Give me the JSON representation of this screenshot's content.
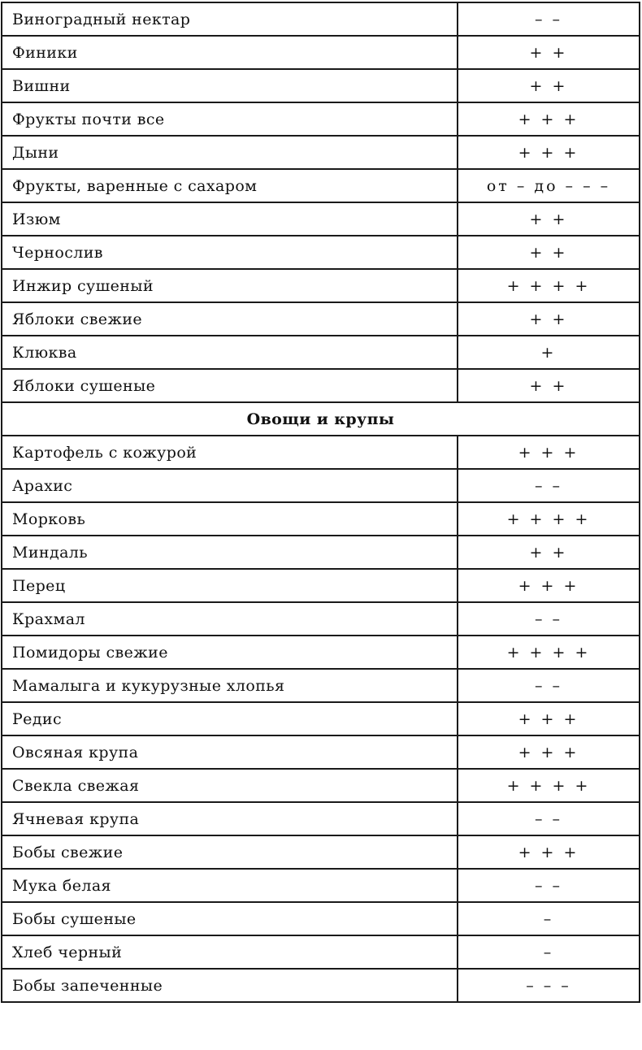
{
  "rows": [
    {
      "name": "Виноградный нектар",
      "value": "– –"
    },
    {
      "name": "Финики",
      "value": "+ +"
    },
    {
      "name": "Вишни",
      "value": "+ +"
    },
    {
      "name": "Фрукты почти все",
      "value": "+ + +"
    },
    {
      "name": "Дыни",
      "value": "+ + +"
    },
    {
      "name": "Фрукты, варенные с сахаром",
      "value": "от – до – – –"
    },
    {
      "name": "Изюм",
      "value": "+ +"
    },
    {
      "name": "Чернослив",
      "value": "+ +"
    },
    {
      "name": "Инжир сушеный",
      "value": "+ + + +"
    },
    {
      "name": "Яблоки свежие",
      "value": "+ +"
    },
    {
      "name": "Клюква",
      "value": "+"
    },
    {
      "name": "Яблоки сушеные",
      "value": "+ +"
    },
    {
      "section": "Овощи и крупы"
    },
    {
      "name": "Картофель с кожурой",
      "value": "+ + +"
    },
    {
      "name": "Арахис",
      "value": "– –"
    },
    {
      "name": "Морковь",
      "value": "+ + + +"
    },
    {
      "name": "Миндаль",
      "value": "+ +"
    },
    {
      "name": "Перец",
      "value": "+ + +"
    },
    {
      "name": "Крахмал",
      "value": "– –"
    },
    {
      "name": "Помидоры свежие",
      "value": "+ + + +"
    },
    {
      "name": "Мамалыга и кукурузные хлопья",
      "value": "– –"
    },
    {
      "name": "Редис",
      "value": "+ + +"
    },
    {
      "name": "Овсяная крупа",
      "value": "+ + +"
    },
    {
      "name": "Свекла свежая",
      "value": "+ + + +"
    },
    {
      "name": "Ячневая крупа",
      "value": "– –"
    },
    {
      "name": "Бобы свежие",
      "value": "+ + +"
    },
    {
      "name": "Мука белая",
      "value": "– –"
    },
    {
      "name": "Бобы сушеные",
      "value": "–"
    },
    {
      "name": "Хлеб черный",
      "value": "–"
    },
    {
      "name": "Бобы запеченные",
      "value": "– – –"
    }
  ]
}
